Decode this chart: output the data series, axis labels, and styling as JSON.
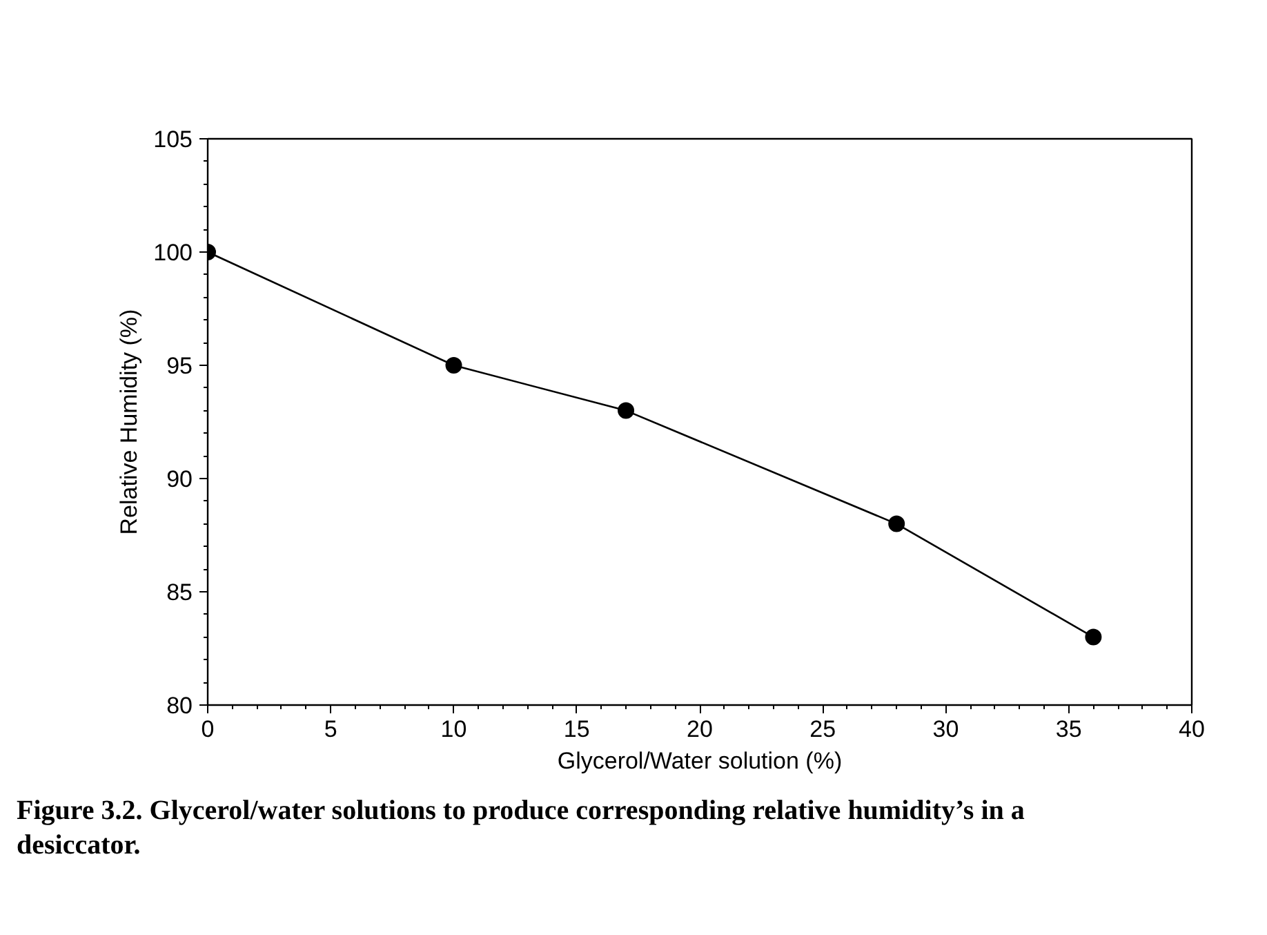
{
  "chart_data": {
    "type": "line",
    "x": [
      0,
      10,
      17,
      28,
      36
    ],
    "series": [
      {
        "color": "#000000",
        "values": [
          100,
          95,
          93,
          88,
          83
        ]
      }
    ],
    "xlabel": "Glycerol/Water solution (%)",
    "ylabel": "Relative Humidity (%)",
    "xlim": [
      0,
      40
    ],
    "ylim": [
      80,
      105
    ],
    "xticks": [
      0,
      5,
      10,
      15,
      20,
      25,
      30,
      35,
      40
    ],
    "yticks": [
      80,
      85,
      90,
      95,
      100,
      105
    ],
    "grid": false,
    "marker": "circle",
    "line_style": "solid",
    "annotations": [
      "Figure 3.2.  Glycerol/water solutions to produce corresponding relative humidity’s in a desiccator."
    ]
  }
}
